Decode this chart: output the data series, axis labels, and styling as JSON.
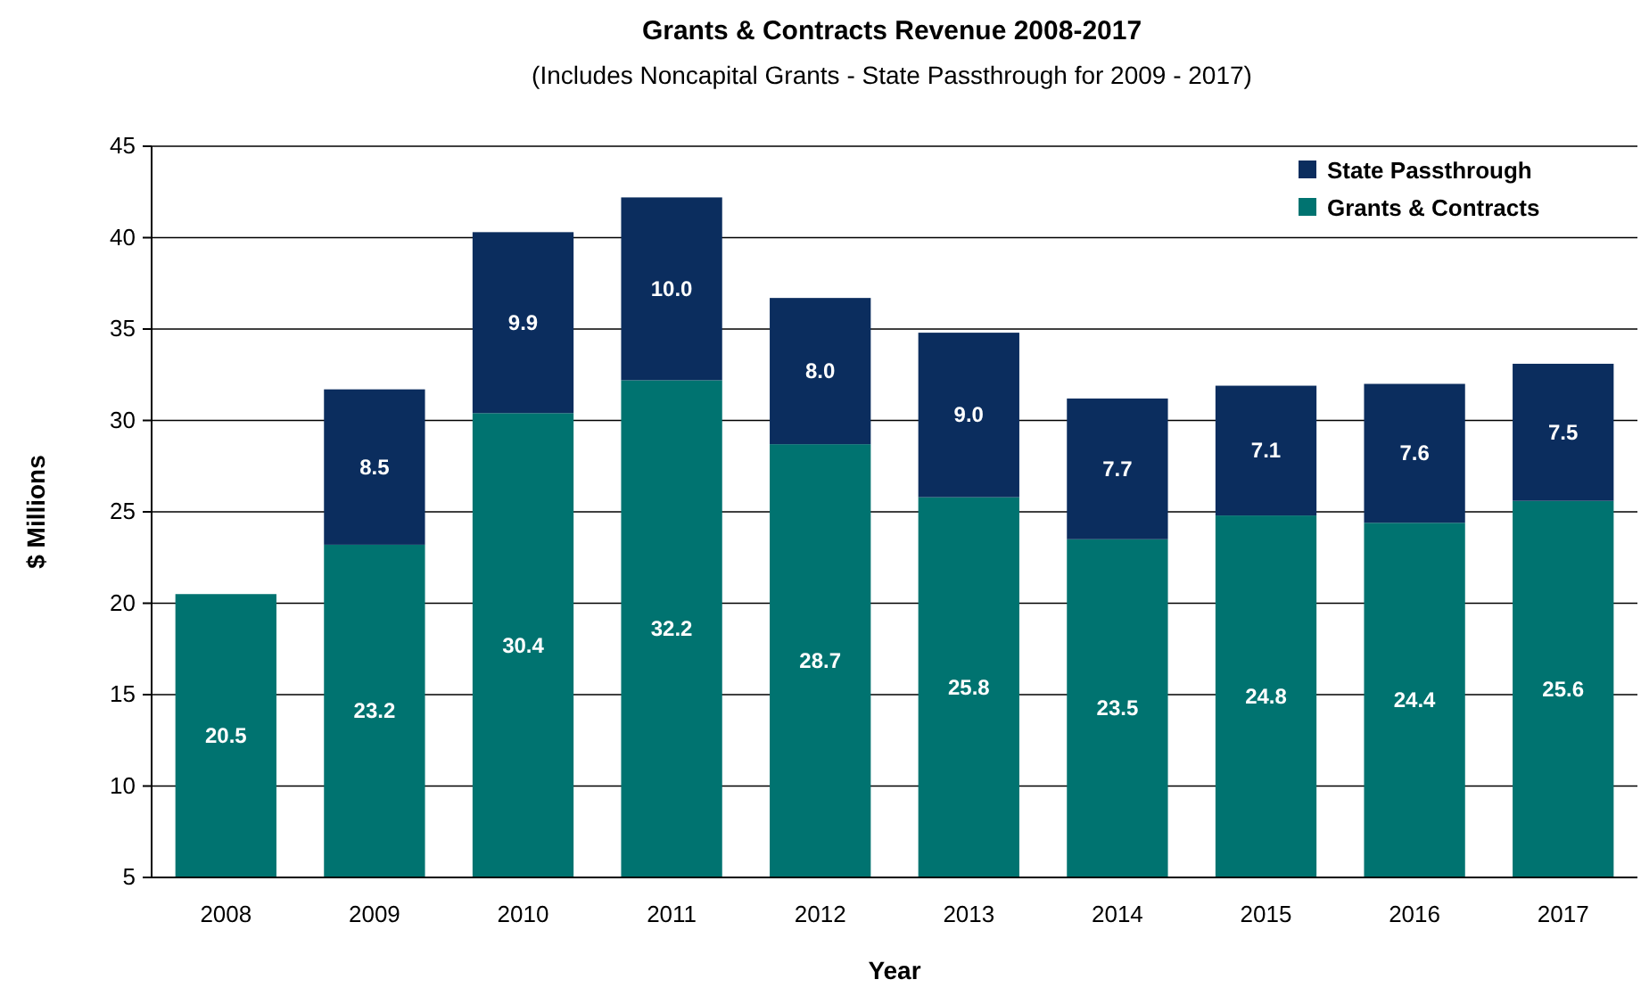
{
  "chart_data": {
    "type": "bar",
    "stacked": true,
    "title": "Grants & Contracts Revenue 2008-2017",
    "subtitle": "(Includes Noncapital Grants - State Passthrough for 2009 - 2017)",
    "xlabel": "Year",
    "ylabel": "$ Millions",
    "categories": [
      "2008",
      "2009",
      "2010",
      "2011",
      "2012",
      "2013",
      "2014",
      "2015",
      "2016",
      "2017"
    ],
    "series": [
      {
        "name": "Grants & Contracts",
        "color": "#007370",
        "values": [
          20.5,
          23.2,
          30.4,
          32.2,
          28.7,
          25.8,
          23.5,
          24.8,
          24.4,
          25.6
        ],
        "value_labels": [
          "20.5",
          "23.2",
          "30.4",
          "32.2",
          "28.7",
          "25.8",
          "23.5",
          "24.8",
          "24.4",
          "25.6"
        ]
      },
      {
        "name": "State Passthrough",
        "color": "#0b2d5e",
        "values": [
          null,
          8.5,
          9.9,
          10.0,
          8.0,
          9.0,
          7.7,
          7.1,
          7.6,
          7.5
        ],
        "value_labels": [
          null,
          "8.5",
          "9.9",
          "10.0",
          "8.0",
          "9.0",
          "7.7",
          "7.1",
          "7.6",
          "7.5"
        ]
      }
    ],
    "ylim": [
      5,
      45
    ],
    "yticks": [
      5,
      10,
      15,
      20,
      25,
      30,
      35,
      40,
      45
    ],
    "grid": "y",
    "legend": "top right"
  }
}
